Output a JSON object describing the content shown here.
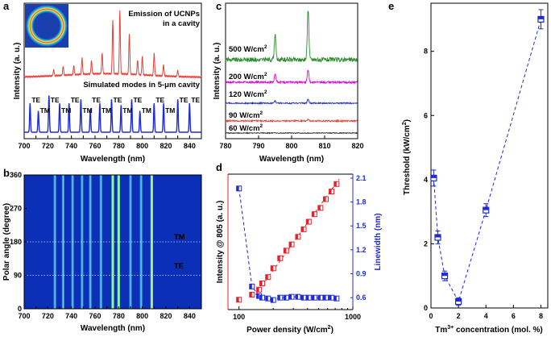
{
  "figure": {
    "panel_letters": [
      "a",
      "b",
      "c",
      "d",
      "e"
    ]
  },
  "chart_data": [
    {
      "panel": "a",
      "type": "line",
      "xlabel": "Wavelength (nm)",
      "ylabel": "Intensity (a. u.)",
      "xlim": [
        700,
        850
      ],
      "xticks": [
        700,
        710,
        720,
        730,
        740,
        750,
        760,
        770,
        780,
        790,
        800,
        810,
        820,
        830,
        840
      ],
      "annotations": [
        "Emission of UCNPs",
        "in a cavity",
        "Simulated modes in 5-μm cavity"
      ],
      "series": [
        {
          "name": "Emission of UCNPs in a cavity",
          "color": "#e8403a",
          "peaks": [
            {
              "x": 725,
              "h": 0.08
            },
            {
              "x": 733,
              "h": 0.12
            },
            {
              "x": 742,
              "h": 0.12
            },
            {
              "x": 749,
              "h": 0.22
            },
            {
              "x": 757,
              "h": 0.18
            },
            {
              "x": 766,
              "h": 0.28
            },
            {
              "x": 775,
              "h": 0.72
            },
            {
              "x": 781,
              "h": 0.85
            },
            {
              "x": 789,
              "h": 0.55
            },
            {
              "x": 796,
              "h": 0.2
            },
            {
              "x": 800,
              "h": 0.25
            },
            {
              "x": 810,
              "h": 0.3
            },
            {
              "x": 818,
              "h": 0.15
            },
            {
              "x": 830,
              "h": 0.08
            }
          ]
        },
        {
          "name": "Simulated modes in 5-μm cavity",
          "color": "#1f2bd6",
          "modes": [
            {
              "x": 705,
              "label": "TE",
              "h": 0.75
            },
            {
              "x": 712,
              "label": "TM",
              "h": 0.55
            },
            {
              "x": 721,
              "label": "TE",
              "h": 0.95
            },
            {
              "x": 730,
              "label": "TM",
              "h": 0.75
            },
            {
              "x": 738,
              "label": "TE",
              "h": 0.75
            },
            {
              "x": 748,
              "label": "TM",
              "h": 0.85
            },
            {
              "x": 756,
              "label": "TE",
              "h": 0.6
            },
            {
              "x": 764,
              "label": "TM",
              "h": 0.75
            },
            {
              "x": 774,
              "label": "TE",
              "h": 0.85
            },
            {
              "x": 782,
              "label": "TM",
              "h": 0.7
            },
            {
              "x": 791,
              "label": "TE",
              "h": 0.85
            },
            {
              "x": 798,
              "label": "TM",
              "h": 0.55
            },
            {
              "x": 810,
              "label": "TE",
              "h": 0.75
            },
            {
              "x": 818,
              "label": "TM",
              "h": 0.75
            },
            {
              "x": 830,
              "label": "TE",
              "h": 0.85
            },
            {
              "x": 840,
              "label": "TE",
              "h": 0.75
            }
          ]
        }
      ]
    },
    {
      "panel": "b",
      "type": "heatmap",
      "xlabel": "Wavelength (nm)",
      "ylabel": "Polar angle (degree)",
      "xlim": [
        700,
        850
      ],
      "xticks": [
        700,
        710,
        720,
        730,
        740,
        750,
        760,
        770,
        780,
        790,
        800,
        810,
        820,
        830,
        840
      ],
      "ylim": [
        0,
        360
      ],
      "yticks": [
        0,
        90,
        180,
        270,
        360
      ],
      "bright_lines_nm": [
        726,
        733,
        741,
        749,
        756,
        765,
        775,
        780,
        790,
        799,
        808
      ],
      "reference_lines_deg": [
        90,
        180
      ],
      "labels": [
        {
          "text": "TM",
          "angle": 190
        },
        {
          "text": "TE",
          "angle": 112
        }
      ]
    },
    {
      "panel": "c",
      "type": "line",
      "xlabel": "Wavelength (nm)",
      "ylabel": "Intensity (a. u.)",
      "xlim": [
        780,
        820
      ],
      "xticks": [
        780,
        790,
        800,
        810,
        820
      ],
      "series": [
        {
          "name": "500 W/cm",
          "sup": "2",
          "color": "#2e8b2e",
          "peaks": [
            {
              "x": 795,
              "h": 0.5
            },
            {
              "x": 805,
              "h": 1.0
            }
          ]
        },
        {
          "name": "200 W/cm",
          "sup": "2",
          "color": "#e000e0",
          "peaks": [
            {
              "x": 795,
              "h": 0.4
            },
            {
              "x": 805,
              "h": 0.55
            }
          ]
        },
        {
          "name": "120 W/cm",
          "sup": "2",
          "color": "#1f2bd6",
          "peaks": [
            {
              "x": 795,
              "h": 0.15
            },
            {
              "x": 805,
              "h": 0.25
            }
          ]
        },
        {
          "name": "90 W/cm",
          "sup": "2",
          "color": "#e8403a",
          "peaks": [
            {
              "x": 805,
              "h": 0.12
            }
          ]
        },
        {
          "name": "60 W/cm",
          "sup": "2",
          "color": "#222222",
          "peaks": []
        }
      ]
    },
    {
      "panel": "d",
      "type": "scatter",
      "xlabel": "Power density (W/cm",
      "xlabel_sup": "2",
      "xlabel_end": ")",
      "ylabel": "Intensity @ 805 (a. u.)",
      "y2label": "Linewidth (nm)",
      "xscale": "log",
      "xlim": [
        80,
        1000
      ],
      "xticks": [
        100,
        1000
      ],
      "y2lim": [
        0.45,
        2.15
      ],
      "y2ticks": [
        "0.6",
        "0.9",
        "1.2",
        "1.5",
        "1.8",
        "2.1"
      ],
      "series": [
        {
          "name": "Intensity @ 805",
          "color": "#e8202a",
          "x": [
            100,
            130,
            150,
            160,
            180,
            200,
            230,
            260,
            290,
            330,
            370,
            410,
            460,
            520,
            580,
            650,
            720
          ],
          "y": [
            0.04,
            0.08,
            0.12,
            0.17,
            0.22,
            0.29,
            0.37,
            0.43,
            0.48,
            0.54,
            0.6,
            0.66,
            0.72,
            0.77,
            0.84,
            0.9,
            0.96
          ]
        },
        {
          "name": "Linewidth",
          "color": "#1f2bd6",
          "x": [
            100,
            130,
            150,
            160,
            180,
            200,
            230,
            260,
            290,
            330,
            370,
            410,
            460,
            520,
            580,
            650,
            720
          ],
          "y": [
            1.97,
            0.74,
            0.62,
            0.6,
            0.59,
            0.57,
            0.6,
            0.6,
            0.61,
            0.61,
            0.6,
            0.6,
            0.6,
            0.6,
            0.6,
            0.6,
            0.59
          ]
        }
      ]
    },
    {
      "panel": "e",
      "type": "scatter",
      "xlabel": "Tm",
      "xlabel_sup": "3+",
      "xlabel_end": " concentration (mol. %)",
      "ylabel": "Threshold (kW/cm",
      "ylabel_sup": "2",
      "ylabel_end": ")",
      "xlim": [
        0,
        8.5
      ],
      "xticks": [
        0,
        2,
        4,
        6,
        8
      ],
      "ylim": [
        0,
        9.5
      ],
      "yticks": [
        0,
        2,
        4,
        6,
        8
      ],
      "series": [
        {
          "name": "Threshold",
          "color": "#1f2bd6",
          "x": [
            0.2,
            0.5,
            1,
            2,
            4,
            8
          ],
          "y": [
            4.05,
            2.2,
            1.0,
            0.2,
            3.05,
            9.0
          ],
          "err": [
            0.25,
            0.2,
            0.15,
            0.12,
            0.2,
            0.3
          ]
        }
      ]
    }
  ]
}
